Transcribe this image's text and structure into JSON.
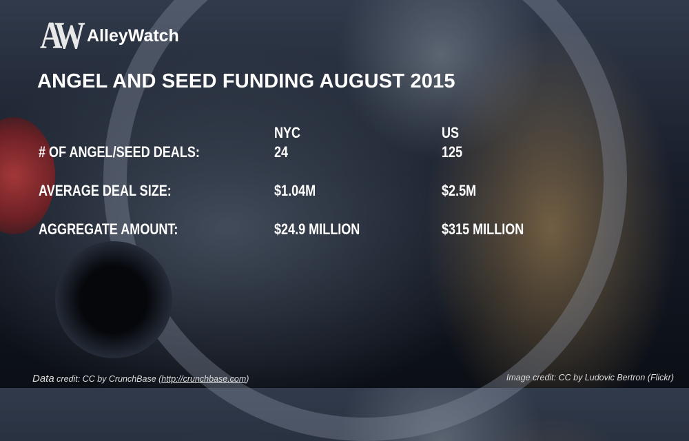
{
  "brand": {
    "mark": "AW",
    "name": "AlleyWatch"
  },
  "title": "ANGEL AND SEED FUNDING AUGUST 2015",
  "columns": [
    "NYC",
    "US"
  ],
  "rows": [
    {
      "label": "# of Angel/Seed Deals:",
      "nyc": "24",
      "us": "125"
    },
    {
      "label": "Average Deal Size:",
      "nyc": "$1.04M",
      "us": "$2.5M"
    },
    {
      "label": "Aggregate Amount:",
      "nyc": "$24.9 Million",
      "us": "$315 Million"
    }
  ],
  "credits": {
    "data_prefix": "Data",
    "data_text": " credit: CC by CrunchBase (",
    "data_link": "http://crunchbase.com",
    "data_suffix": ")",
    "image": "Image credit: CC by Ludovic Bertron (Flickr)"
  }
}
